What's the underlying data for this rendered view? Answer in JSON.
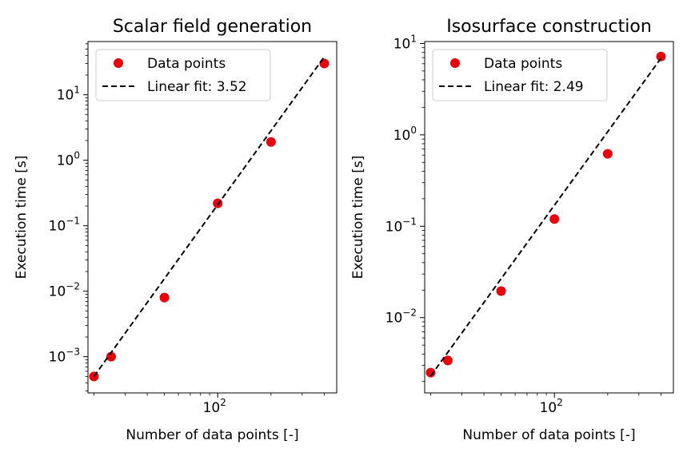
{
  "chart_data": [
    {
      "type": "scatter",
      "title": "Scalar field generation",
      "xlabel": "Number of data points [-]",
      "ylabel": "Execution time [s]",
      "xscale": "log",
      "yscale": "log",
      "xlim": [
        18.5,
        470
      ],
      "ylim": [
        0.00028,
        65
      ],
      "xticks": [
        {
          "value": 100,
          "base": "10",
          "exp": "2"
        }
      ],
      "yticks": [
        {
          "value": 0.001,
          "base": "10",
          "exp": "−3"
        },
        {
          "value": 0.01,
          "base": "10",
          "exp": "−2"
        },
        {
          "value": 0.1,
          "base": "10",
          "exp": "−1"
        },
        {
          "value": 1,
          "base": "10",
          "exp": "0"
        },
        {
          "value": 10,
          "base": "10",
          "exp": "1"
        }
      ],
      "grid": false,
      "legend_position": "top-left",
      "series": [
        {
          "name": "Data points",
          "style": "marker",
          "color": "#e8000b",
          "x": [
            20,
            25,
            50,
            100,
            200,
            400
          ],
          "y": [
            0.0005,
            0.001,
            0.008,
            0.22,
            1.9,
            30
          ]
        },
        {
          "name": "Linear fit: 3.52",
          "style": "dashed-line",
          "color": "#000000",
          "x": [
            20,
            400
          ],
          "y": [
            0.0005,
            38
          ]
        }
      ]
    },
    {
      "type": "scatter",
      "title": "Isosurface construction",
      "xlabel": "Number of data points [-]",
      "ylabel": "Execution time [s]",
      "xscale": "log",
      "yscale": "log",
      "xlim": [
        18.5,
        470
      ],
      "ylim": [
        0.0015,
        10.5
      ],
      "xticks": [
        {
          "value": 100,
          "base": "10",
          "exp": "2"
        }
      ],
      "yticks": [
        {
          "value": 0.01,
          "base": "10",
          "exp": "−2"
        },
        {
          "value": 0.1,
          "base": "10",
          "exp": "−1"
        },
        {
          "value": 1,
          "base": "10",
          "exp": "0"
        },
        {
          "value": 10,
          "base": "10",
          "exp": "1"
        }
      ],
      "grid": false,
      "legend_position": "top-left",
      "series": [
        {
          "name": "Data points",
          "style": "marker",
          "color": "#e8000b",
          "x": [
            20,
            25,
            50,
            100,
            200,
            400
          ],
          "y": [
            0.0025,
            0.0034,
            0.0195,
            0.12,
            0.62,
            7.2
          ]
        },
        {
          "name": "Linear fit: 2.49",
          "style": "dashed-line",
          "color": "#000000",
          "x": [
            20,
            400
          ],
          "y": [
            0.0023,
            6.9
          ]
        }
      ]
    }
  ]
}
